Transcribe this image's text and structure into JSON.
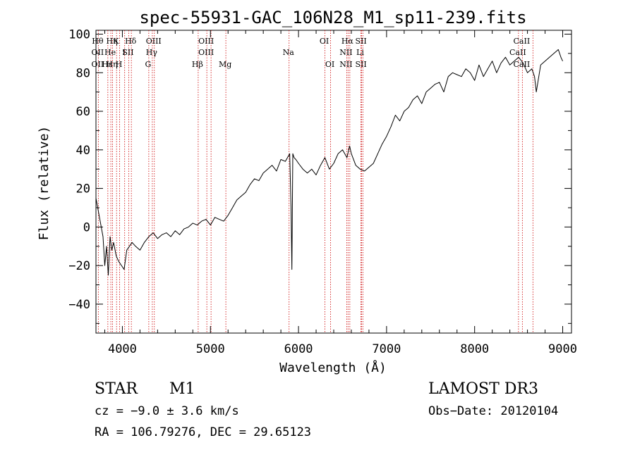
{
  "chart_data": {
    "type": "line",
    "title": "spec-55931-GAC_106N28_M1_sp11-239.fits",
    "xlabel": "Wavelength (Å)",
    "ylabel": "Flux (relative)",
    "xlim": [
      3700,
      9100
    ],
    "ylim": [
      -55,
      102
    ],
    "xticks": [
      4000,
      5000,
      6000,
      7000,
      8000,
      9000
    ],
    "xtick_labels": [
      "4000",
      "5000",
      "6000",
      "7000",
      "8000",
      "9000"
    ],
    "yticks": [
      -40,
      -20,
      0,
      20,
      40,
      60,
      80,
      100
    ],
    "ytick_labels": [
      "−40",
      "−20",
      "0",
      "20",
      "40",
      "60",
      "80",
      "100"
    ],
    "grid": false,
    "series": [
      {
        "name": "flux",
        "x": [
          3700,
          3740,
          3780,
          3800,
          3820,
          3840,
          3860,
          3880,
          3900,
          3930,
          3960,
          3990,
          4020,
          4050,
          4080,
          4110,
          4150,
          4200,
          4250,
          4300,
          4350,
          4400,
          4450,
          4500,
          4550,
          4600,
          4650,
          4700,
          4750,
          4800,
          4850,
          4900,
          4950,
          5000,
          5050,
          5100,
          5150,
          5200,
          5250,
          5300,
          5350,
          5400,
          5450,
          5500,
          5550,
          5600,
          5650,
          5700,
          5750,
          5800,
          5850,
          5900,
          5915,
          5925,
          5935,
          5950,
          5970,
          6000,
          6050,
          6100,
          6150,
          6200,
          6250,
          6300,
          6350,
          6400,
          6450,
          6500,
          6550,
          6580,
          6600,
          6650,
          6700,
          6750,
          6800,
          6850,
          6900,
          6950,
          7000,
          7050,
          7100,
          7150,
          7200,
          7250,
          7300,
          7350,
          7400,
          7450,
          7500,
          7550,
          7600,
          7650,
          7700,
          7750,
          7800,
          7850,
          7900,
          7950,
          8000,
          8050,
          8100,
          8150,
          8200,
          8250,
          8300,
          8350,
          8400,
          8450,
          8500,
          8550,
          8600,
          8650,
          8680,
          8700,
          8750,
          8800,
          8850,
          8900,
          8950,
          8980,
          9000
        ],
        "values": [
          15,
          5,
          -5,
          -20,
          -10,
          -25,
          -5,
          -12,
          -8,
          -15,
          -18,
          -20,
          -22,
          -12,
          -10,
          -8,
          -10,
          -12,
          -8,
          -5,
          -3,
          -6,
          -4,
          -3,
          -5,
          -2,
          -4,
          -1,
          0,
          2,
          1,
          3,
          4,
          1,
          5,
          4,
          3,
          6,
          10,
          14,
          16,
          18,
          22,
          25,
          24,
          28,
          30,
          32,
          29,
          35,
          34,
          38,
          10,
          -22,
          38,
          36,
          35,
          33,
          30,
          28,
          30,
          27,
          32,
          36,
          30,
          33,
          38,
          40,
          36,
          42,
          38,
          32,
          30,
          29,
          31,
          33,
          38,
          43,
          47,
          52,
          58,
          55,
          60,
          62,
          66,
          68,
          64,
          70,
          72,
          74,
          75,
          70,
          78,
          80,
          79,
          78,
          82,
          80,
          76,
          84,
          78,
          82,
          86,
          80,
          85,
          88,
          84,
          86,
          88,
          85,
          80,
          82,
          78,
          70,
          84,
          86,
          88,
          90,
          92,
          88,
          86
        ]
      }
    ],
    "line_markers": [
      {
        "wavelength": 3727,
        "top": "Hθ",
        "mid": "OII",
        "bot": "OII"
      },
      {
        "wavelength": 3835,
        "top": "",
        "mid": "",
        "bot": "Hε"
      },
      {
        "wavelength": 3869,
        "top": "",
        "mid": "He",
        "bot": ""
      },
      {
        "wavelength": 3889,
        "top": "Hη",
        "mid": "",
        "bot": "Hη"
      },
      {
        "wavelength": 3934,
        "top": "K",
        "mid": "",
        "bot": ""
      },
      {
        "wavelength": 3969,
        "top": "",
        "mid": "",
        "bot": "H"
      },
      {
        "wavelength": 4026,
        "top": "",
        "mid": "I",
        "bot": ""
      },
      {
        "wavelength": 4072,
        "top": "",
        "mid": "SII",
        "bot": ""
      },
      {
        "wavelength": 4102,
        "top": "Hδ",
        "mid": "",
        "bot": ""
      },
      {
        "wavelength": 4300,
        "top": "",
        "mid": "",
        "bot": "G"
      },
      {
        "wavelength": 4340,
        "top": "",
        "mid": "Hγ",
        "bot": ""
      },
      {
        "wavelength": 4363,
        "top": "OIII",
        "mid": "",
        "bot": ""
      },
      {
        "wavelength": 4861,
        "top": "",
        "mid": "",
        "bot": "Hβ"
      },
      {
        "wavelength": 4959,
        "top": "OIII",
        "mid": "OIII",
        "bot": ""
      },
      {
        "wavelength": 5007,
        "top": "",
        "mid": "",
        "bot": ""
      },
      {
        "wavelength": 5175,
        "top": "",
        "mid": "",
        "bot": "Mg"
      },
      {
        "wavelength": 5893,
        "top": "",
        "mid": "Na",
        "bot": ""
      },
      {
        "wavelength": 6300,
        "top": "OI",
        "mid": "",
        "bot": ""
      },
      {
        "wavelength": 6364,
        "top": "",
        "mid": "",
        "bot": "OI"
      },
      {
        "wavelength": 6548,
        "top": "",
        "mid": "NII",
        "bot": "NII"
      },
      {
        "wavelength": 6563,
        "top": "Hα",
        "mid": "",
        "bot": ""
      },
      {
        "wavelength": 6583,
        "top": "",
        "mid": "",
        "bot": ""
      },
      {
        "wavelength": 6708,
        "top": "",
        "mid": "Li",
        "bot": ""
      },
      {
        "wavelength": 6717,
        "top": "SII",
        "mid": "",
        "bot": "SII"
      },
      {
        "wavelength": 6731,
        "top": "",
        "mid": "",
        "bot": ""
      },
      {
        "wavelength": 8498,
        "top": "",
        "mid": "CaII",
        "bot": ""
      },
      {
        "wavelength": 8542,
        "top": "CaII",
        "mid": "",
        "bot": "CaII"
      },
      {
        "wavelength": 8662,
        "top": "",
        "mid": "",
        "bot": ""
      }
    ]
  },
  "info": {
    "object_class": "STAR",
    "subclass": "M1",
    "survey": "LAMOST DR3",
    "cz": "cz = −9.0 ± 3.6 km/s",
    "obs_date": "Obs−Date: 20120104",
    "coords": "RA = 106.79276, DEC =  29.65123"
  },
  "colors": {
    "spectrum": "#000000",
    "marker": "#cc0000",
    "axes": "#000000"
  }
}
